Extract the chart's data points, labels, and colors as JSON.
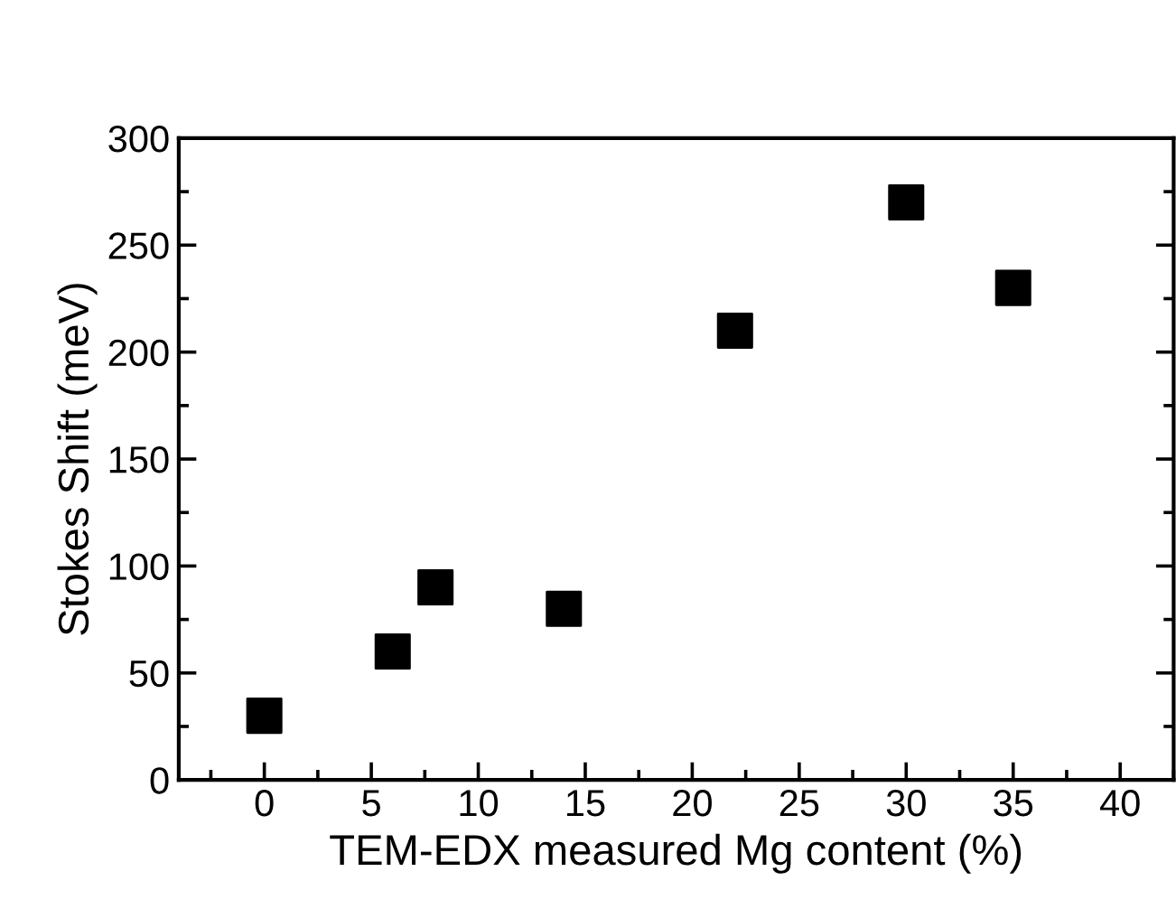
{
  "chart_data": {
    "type": "scatter",
    "xlabel": "TEM-EDX measured Mg content (%)",
    "ylabel": "Stokes Shift (meV)",
    "x": [
      0,
      6,
      8,
      14,
      22,
      30,
      35
    ],
    "series": [
      {
        "color": "#000000",
        "values": [
          30,
          60,
          90,
          80,
          210,
          270,
          230
        ]
      }
    ],
    "marker": "square",
    "xlim": [
      -4,
      42.5
    ],
    "xticks": [
      0,
      5,
      10,
      15,
      20,
      25,
      30,
      35,
      40
    ],
    "ylim": [
      0,
      300
    ],
    "yticks": [
      0,
      50,
      100,
      150,
      200,
      250,
      300
    ],
    "grid": false,
    "legend": false
  }
}
